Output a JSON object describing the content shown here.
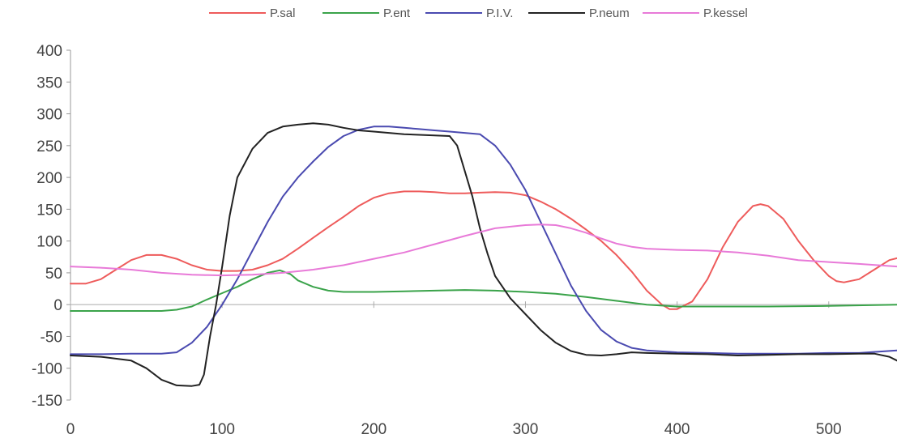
{
  "chart_data": {
    "type": "line",
    "title": "",
    "xlabel": "",
    "ylabel": "",
    "xlim": [
      0,
      545
    ],
    "ylim": [
      -150,
      400
    ],
    "x_ticks": [
      0,
      100,
      200,
      300,
      400,
      500
    ],
    "y_ticks": [
      400,
      350,
      300,
      250,
      200,
      150,
      100,
      50,
      0,
      -50,
      -100,
      -150
    ],
    "grid": false,
    "legend_position": "top",
    "series": [
      {
        "name": "P.sal",
        "color": "#ee5b5b",
        "points": [
          [
            0,
            33
          ],
          [
            10,
            33
          ],
          [
            20,
            40
          ],
          [
            30,
            55
          ],
          [
            40,
            70
          ],
          [
            50,
            78
          ],
          [
            60,
            78
          ],
          [
            70,
            72
          ],
          [
            80,
            62
          ],
          [
            90,
            55
          ],
          [
            100,
            53
          ],
          [
            110,
            53
          ],
          [
            120,
            55
          ],
          [
            130,
            62
          ],
          [
            140,
            72
          ],
          [
            150,
            88
          ],
          [
            160,
            105
          ],
          [
            170,
            122
          ],
          [
            180,
            138
          ],
          [
            190,
            155
          ],
          [
            200,
            168
          ],
          [
            210,
            175
          ],
          [
            220,
            178
          ],
          [
            230,
            178
          ],
          [
            240,
            177
          ],
          [
            250,
            175
          ],
          [
            260,
            175
          ],
          [
            270,
            176
          ],
          [
            280,
            177
          ],
          [
            290,
            176
          ],
          [
            300,
            172
          ],
          [
            310,
            162
          ],
          [
            320,
            150
          ],
          [
            330,
            135
          ],
          [
            340,
            118
          ],
          [
            350,
            100
          ],
          [
            360,
            78
          ],
          [
            370,
            52
          ],
          [
            380,
            22
          ],
          [
            390,
            0
          ],
          [
            395,
            -7
          ],
          [
            400,
            -7
          ],
          [
            410,
            5
          ],
          [
            420,
            40
          ],
          [
            430,
            90
          ],
          [
            440,
            130
          ],
          [
            450,
            155
          ],
          [
            455,
            158
          ],
          [
            460,
            155
          ],
          [
            470,
            135
          ],
          [
            480,
            100
          ],
          [
            490,
            70
          ],
          [
            500,
            45
          ],
          [
            505,
            37
          ],
          [
            510,
            35
          ],
          [
            520,
            40
          ],
          [
            530,
            55
          ],
          [
            540,
            70
          ],
          [
            545,
            73
          ]
        ]
      },
      {
        "name": "P.ent",
        "color": "#3aa34a",
        "points": [
          [
            0,
            -10
          ],
          [
            20,
            -10
          ],
          [
            40,
            -10
          ],
          [
            60,
            -10
          ],
          [
            70,
            -8
          ],
          [
            80,
            -3
          ],
          [
            90,
            8
          ],
          [
            100,
            18
          ],
          [
            110,
            28
          ],
          [
            120,
            40
          ],
          [
            130,
            50
          ],
          [
            138,
            54
          ],
          [
            145,
            48
          ],
          [
            150,
            38
          ],
          [
            160,
            28
          ],
          [
            170,
            22
          ],
          [
            180,
            20
          ],
          [
            200,
            20
          ],
          [
            220,
            21
          ],
          [
            240,
            22
          ],
          [
            260,
            23
          ],
          [
            280,
            22
          ],
          [
            300,
            20
          ],
          [
            320,
            17
          ],
          [
            340,
            12
          ],
          [
            360,
            6
          ],
          [
            380,
            0
          ],
          [
            400,
            -3
          ],
          [
            420,
            -3
          ],
          [
            460,
            -3
          ],
          [
            500,
            -2
          ],
          [
            545,
            0
          ]
        ]
      },
      {
        "name": "P.I.V.",
        "color": "#4a4ab0",
        "points": [
          [
            0,
            -78
          ],
          [
            20,
            -78
          ],
          [
            40,
            -77
          ],
          [
            60,
            -77
          ],
          [
            70,
            -75
          ],
          [
            80,
            -60
          ],
          [
            90,
            -35
          ],
          [
            100,
            0
          ],
          [
            110,
            40
          ],
          [
            120,
            85
          ],
          [
            130,
            130
          ],
          [
            140,
            170
          ],
          [
            150,
            200
          ],
          [
            160,
            225
          ],
          [
            170,
            248
          ],
          [
            180,
            265
          ],
          [
            190,
            275
          ],
          [
            200,
            280
          ],
          [
            210,
            280
          ],
          [
            220,
            278
          ],
          [
            230,
            276
          ],
          [
            240,
            274
          ],
          [
            250,
            272
          ],
          [
            260,
            270
          ],
          [
            270,
            268
          ],
          [
            280,
            250
          ],
          [
            290,
            220
          ],
          [
            300,
            180
          ],
          [
            310,
            130
          ],
          [
            320,
            80
          ],
          [
            330,
            30
          ],
          [
            340,
            -10
          ],
          [
            350,
            -40
          ],
          [
            360,
            -58
          ],
          [
            370,
            -68
          ],
          [
            380,
            -72
          ],
          [
            400,
            -75
          ],
          [
            420,
            -76
          ],
          [
            440,
            -77
          ],
          [
            460,
            -77
          ],
          [
            480,
            -77
          ],
          [
            500,
            -76
          ],
          [
            520,
            -76
          ],
          [
            545,
            -72
          ]
        ]
      },
      {
        "name": "P.neum",
        "color": "#222222",
        "points": [
          [
            0,
            -80
          ],
          [
            20,
            -82
          ],
          [
            40,
            -88
          ],
          [
            50,
            -100
          ],
          [
            60,
            -118
          ],
          [
            70,
            -127
          ],
          [
            80,
            -128
          ],
          [
            85,
            -126
          ],
          [
            88,
            -110
          ],
          [
            92,
            -50
          ],
          [
            96,
            0
          ],
          [
            100,
            60
          ],
          [
            105,
            140
          ],
          [
            110,
            200
          ],
          [
            120,
            245
          ],
          [
            130,
            270
          ],
          [
            140,
            280
          ],
          [
            150,
            283
          ],
          [
            160,
            285
          ],
          [
            170,
            283
          ],
          [
            180,
            278
          ],
          [
            190,
            274
          ],
          [
            200,
            272
          ],
          [
            210,
            270
          ],
          [
            220,
            268
          ],
          [
            230,
            267
          ],
          [
            240,
            266
          ],
          [
            250,
            265
          ],
          [
            255,
            250
          ],
          [
            260,
            210
          ],
          [
            265,
            170
          ],
          [
            270,
            120
          ],
          [
            275,
            80
          ],
          [
            280,
            45
          ],
          [
            290,
            10
          ],
          [
            300,
            -15
          ],
          [
            310,
            -40
          ],
          [
            320,
            -60
          ],
          [
            330,
            -73
          ],
          [
            340,
            -79
          ],
          [
            350,
            -80
          ],
          [
            360,
            -78
          ],
          [
            370,
            -75
          ],
          [
            380,
            -76
          ],
          [
            400,
            -77
          ],
          [
            420,
            -78
          ],
          [
            440,
            -80
          ],
          [
            460,
            -79
          ],
          [
            480,
            -78
          ],
          [
            500,
            -78
          ],
          [
            520,
            -77
          ],
          [
            530,
            -77
          ],
          [
            540,
            -82
          ],
          [
            545,
            -88
          ]
        ]
      },
      {
        "name": "P.kessel",
        "color": "#e87ad8",
        "points": [
          [
            0,
            60
          ],
          [
            20,
            58
          ],
          [
            40,
            55
          ],
          [
            60,
            50
          ],
          [
            80,
            47
          ],
          [
            100,
            46
          ],
          [
            120,
            47
          ],
          [
            140,
            50
          ],
          [
            160,
            55
          ],
          [
            180,
            62
          ],
          [
            200,
            72
          ],
          [
            220,
            82
          ],
          [
            240,
            95
          ],
          [
            260,
            108
          ],
          [
            280,
            120
          ],
          [
            300,
            125
          ],
          [
            310,
            126
          ],
          [
            320,
            125
          ],
          [
            330,
            120
          ],
          [
            340,
            113
          ],
          [
            350,
            104
          ],
          [
            360,
            96
          ],
          [
            370,
            91
          ],
          [
            380,
            88
          ],
          [
            400,
            86
          ],
          [
            420,
            85
          ],
          [
            440,
            82
          ],
          [
            460,
            77
          ],
          [
            480,
            70
          ],
          [
            500,
            67
          ],
          [
            520,
            64
          ],
          [
            545,
            60
          ]
        ]
      }
    ]
  }
}
